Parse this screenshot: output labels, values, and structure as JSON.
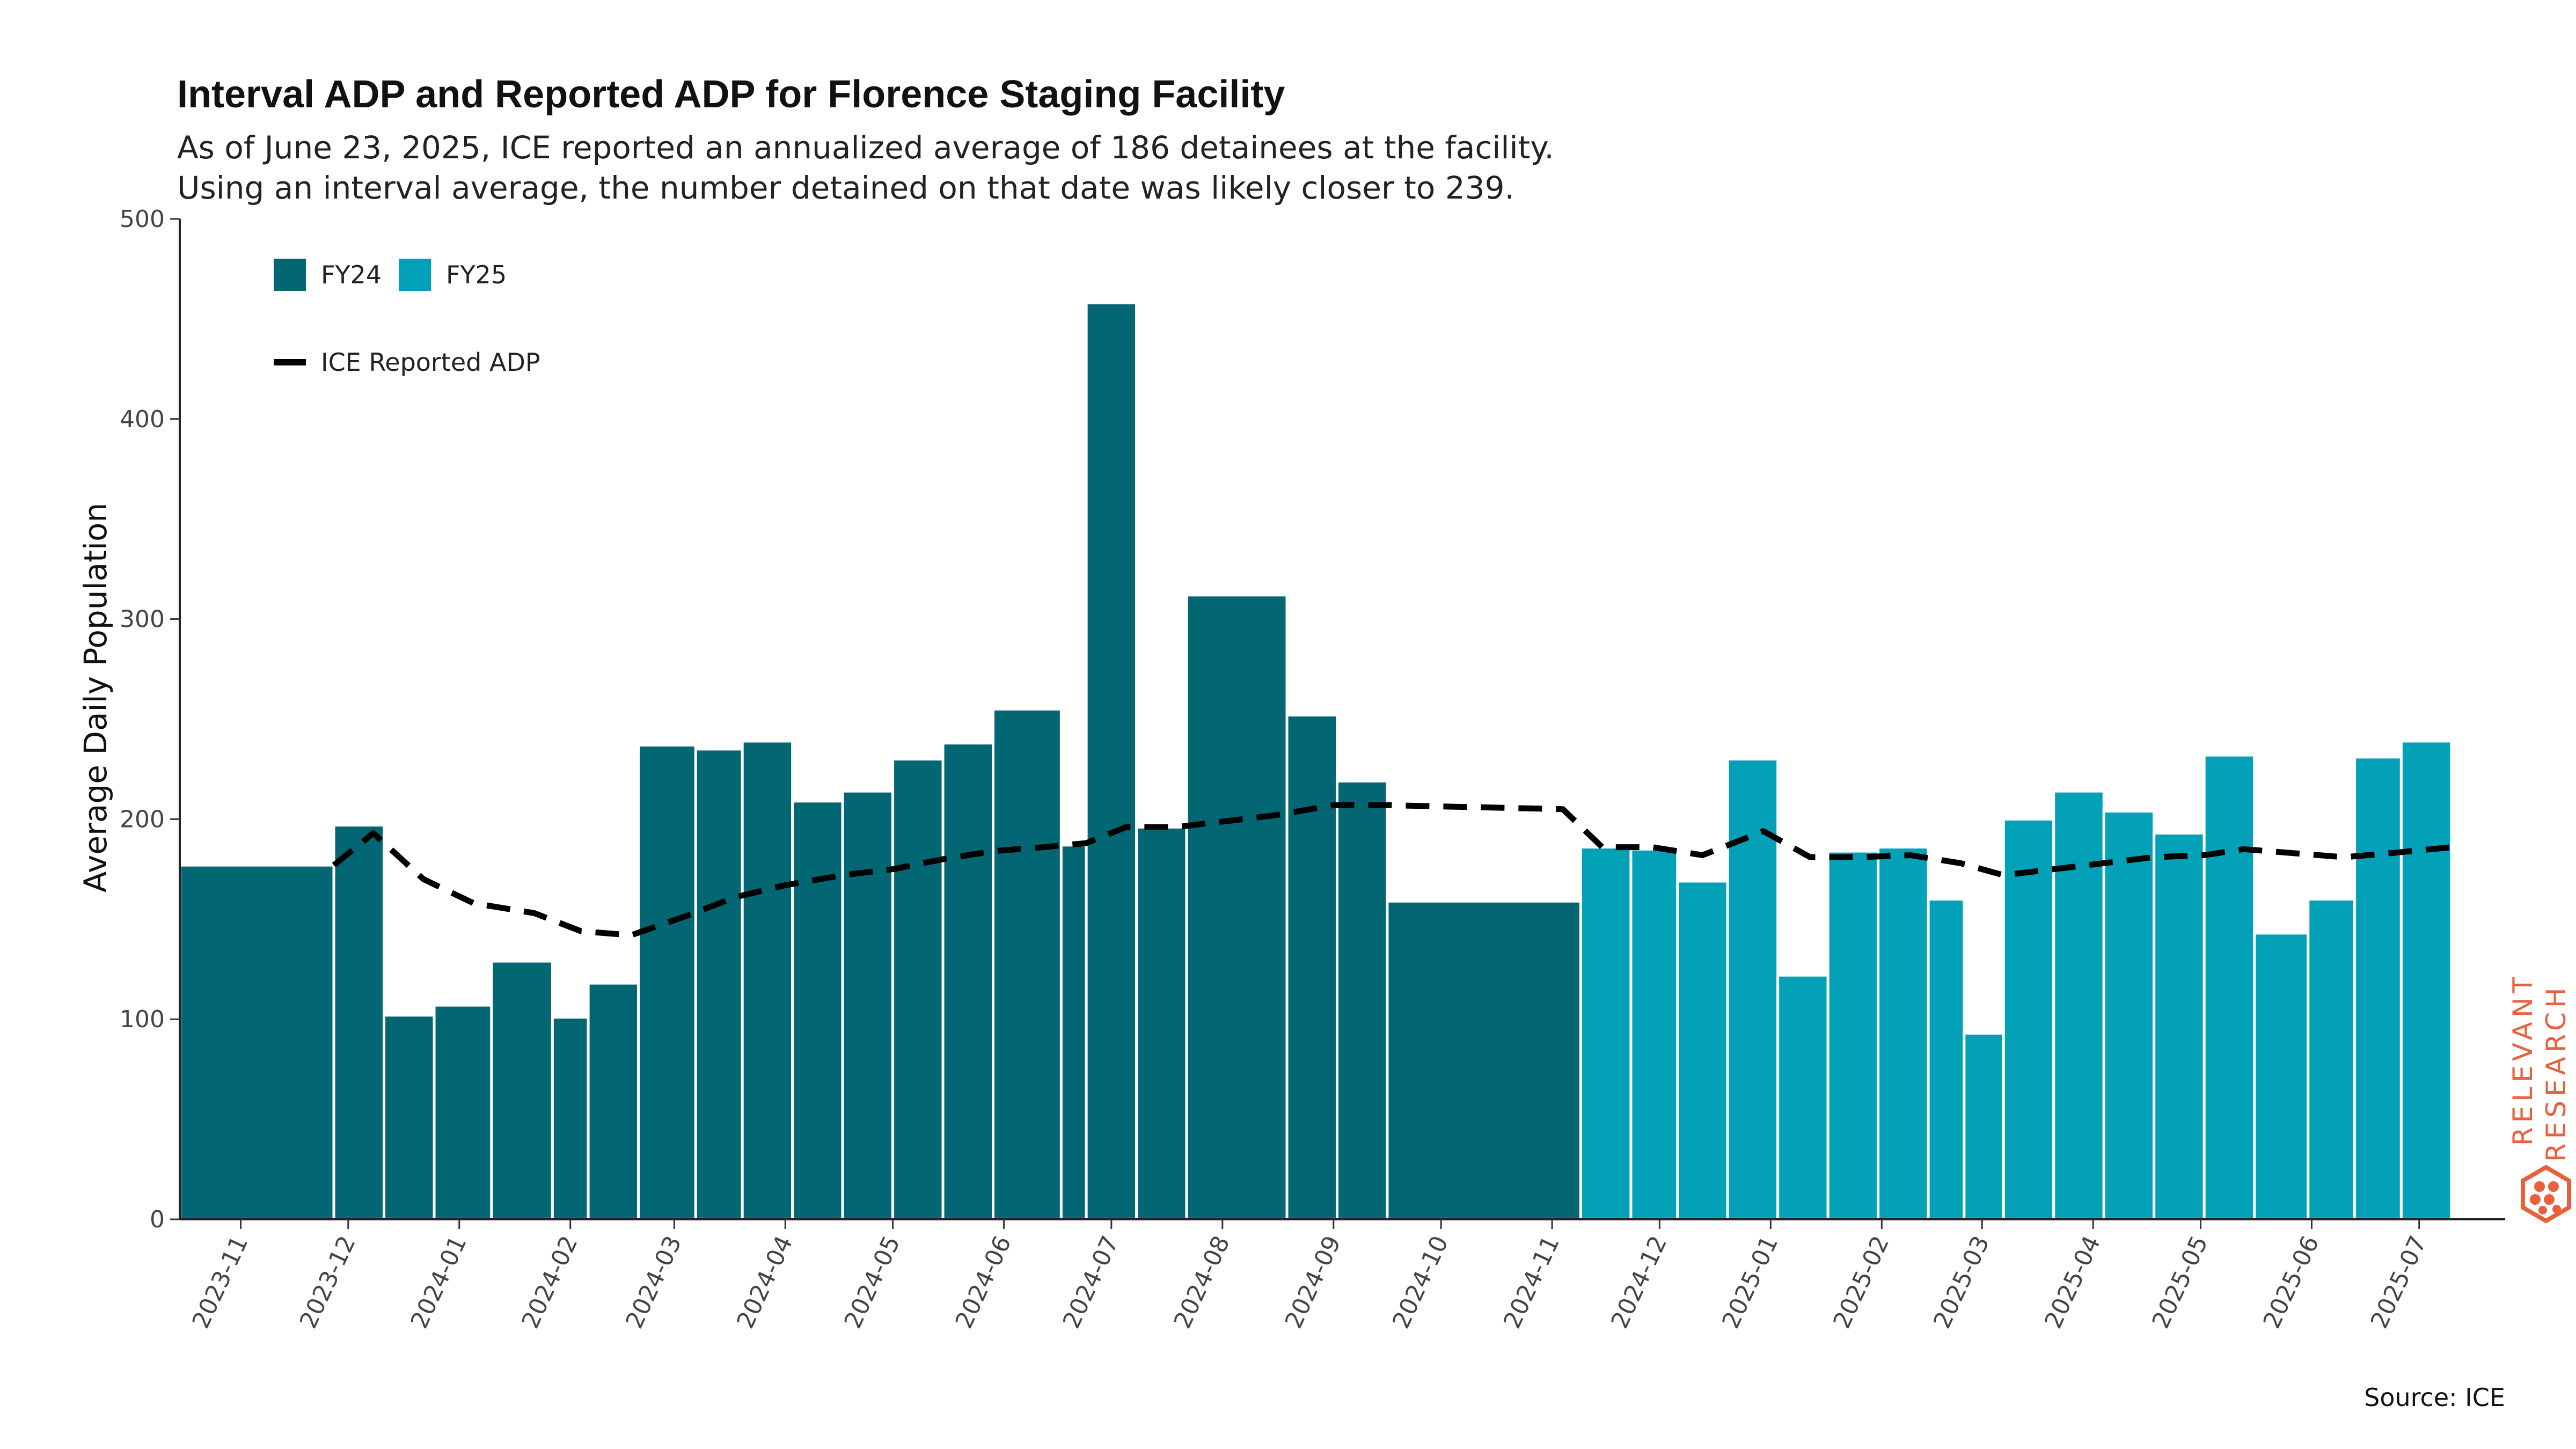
{
  "title": "Interval ADP and Reported ADP for Florence Staging Facility",
  "subtitle_lines": [
    "As of June 23, 2025, ICE reported an annualized average of 186 detainees at the facility.",
    "Using an interval average, the number detained on that date was likely closer to 239."
  ],
  "source": "Source: ICE",
  "logo": {
    "line1": "RELEVANT",
    "line2": "RESEARCH",
    "color": "#e8603c"
  },
  "chart_data": {
    "type": "bar",
    "ylabel": "Average Daily Population",
    "xlabel": "",
    "ylim": [
      0,
      500
    ],
    "yticks": [
      0,
      100,
      200,
      300,
      400,
      500
    ],
    "xlim": [
      "2023-10-15",
      "2025-07-25"
    ],
    "xticks": [
      "2023-11",
      "2023-12",
      "2024-01",
      "2024-02",
      "2024-03",
      "2024-04",
      "2024-05",
      "2024-06",
      "2024-07",
      "2024-08",
      "2024-09",
      "2024-10",
      "2024-11",
      "2024-12",
      "2025-01",
      "2025-02",
      "2025-03",
      "2025-04",
      "2025-05",
      "2025-06",
      "2025-07"
    ],
    "grid": false,
    "legend_position": "top-left",
    "colors": {
      "FY24": "#036673",
      "FY25": "#03a1b7",
      "reported": "#000000"
    },
    "legend": [
      {
        "label": "FY24",
        "kind": "box",
        "color": "#036673"
      },
      {
        "label": "FY25",
        "kind": "box",
        "color": "#03a1b7"
      },
      {
        "label": "ICE Reported ADP",
        "kind": "dash",
        "color": "#000000"
      }
    ],
    "bars": [
      {
        "start": "2023-10-15",
        "end": "2023-11-27",
        "value": 177,
        "fy": "FY24"
      },
      {
        "start": "2023-11-27",
        "end": "2023-12-11",
        "value": 197,
        "fy": "FY24"
      },
      {
        "start": "2023-12-11",
        "end": "2023-12-25",
        "value": 102,
        "fy": "FY24"
      },
      {
        "start": "2023-12-25",
        "end": "2024-01-10",
        "value": 107,
        "fy": "FY24"
      },
      {
        "start": "2024-01-10",
        "end": "2024-01-27",
        "value": 129,
        "fy": "FY24"
      },
      {
        "start": "2024-01-27",
        "end": "2024-02-06",
        "value": 101,
        "fy": "FY24"
      },
      {
        "start": "2024-02-06",
        "end": "2024-02-20",
        "value": 118,
        "fy": "FY24"
      },
      {
        "start": "2024-02-20",
        "end": "2024-03-07",
        "value": 237,
        "fy": "FY24"
      },
      {
        "start": "2024-03-07",
        "end": "2024-03-20",
        "value": 235,
        "fy": "FY24"
      },
      {
        "start": "2024-03-20",
        "end": "2024-04-03",
        "value": 239,
        "fy": "FY24"
      },
      {
        "start": "2024-04-03",
        "end": "2024-04-17",
        "value": 209,
        "fy": "FY24"
      },
      {
        "start": "2024-04-17",
        "end": "2024-05-01",
        "value": 214,
        "fy": "FY24"
      },
      {
        "start": "2024-05-01",
        "end": "2024-05-15",
        "value": 230,
        "fy": "FY24"
      },
      {
        "start": "2024-05-15",
        "end": "2024-05-29",
        "value": 238,
        "fy": "FY24"
      },
      {
        "start": "2024-05-29",
        "end": "2024-06-17",
        "value": 255,
        "fy": "FY24"
      },
      {
        "start": "2024-06-17",
        "end": "2024-06-24",
        "value": 187,
        "fy": "FY24"
      },
      {
        "start": "2024-06-24",
        "end": "2024-07-08",
        "value": 458,
        "fy": "FY24"
      },
      {
        "start": "2024-07-08",
        "end": "2024-07-22",
        "value": 196,
        "fy": "FY24"
      },
      {
        "start": "2024-07-22",
        "end": "2024-08-19",
        "value": 312,
        "fy": "FY24"
      },
      {
        "start": "2024-08-19",
        "end": "2024-09-02",
        "value": 252,
        "fy": "FY24"
      },
      {
        "start": "2024-09-02",
        "end": "2024-09-16",
        "value": 219,
        "fy": "FY24"
      },
      {
        "start": "2024-09-16",
        "end": "2024-11-09",
        "value": 159,
        "fy": "FY24"
      },
      {
        "start": "2024-11-09",
        "end": "2024-11-23",
        "value": 186,
        "fy": "FY25"
      },
      {
        "start": "2024-11-23",
        "end": "2024-12-06",
        "value": 185,
        "fy": "FY25"
      },
      {
        "start": "2024-12-06",
        "end": "2024-12-20",
        "value": 169,
        "fy": "FY25"
      },
      {
        "start": "2024-12-20",
        "end": "2025-01-03",
        "value": 230,
        "fy": "FY25"
      },
      {
        "start": "2025-01-03",
        "end": "2025-01-17",
        "value": 122,
        "fy": "FY25"
      },
      {
        "start": "2025-01-17",
        "end": "2025-01-31",
        "value": 184,
        "fy": "FY25"
      },
      {
        "start": "2025-01-31",
        "end": "2025-02-14",
        "value": 186,
        "fy": "FY25"
      },
      {
        "start": "2025-02-14",
        "end": "2025-02-24",
        "value": 160,
        "fy": "FY25"
      },
      {
        "start": "2025-02-24",
        "end": "2025-03-07",
        "value": 93,
        "fy": "FY25"
      },
      {
        "start": "2025-03-07",
        "end": "2025-03-21",
        "value": 200,
        "fy": "FY25"
      },
      {
        "start": "2025-03-21",
        "end": "2025-04-04",
        "value": 214,
        "fy": "FY25"
      },
      {
        "start": "2025-04-04",
        "end": "2025-04-18",
        "value": 204,
        "fy": "FY25"
      },
      {
        "start": "2025-04-18",
        "end": "2025-05-02",
        "value": 193,
        "fy": "FY25"
      },
      {
        "start": "2025-05-02",
        "end": "2025-05-16",
        "value": 232,
        "fy": "FY25"
      },
      {
        "start": "2025-05-16",
        "end": "2025-05-31",
        "value": 143,
        "fy": "FY25"
      },
      {
        "start": "2025-05-31",
        "end": "2025-06-13",
        "value": 160,
        "fy": "FY25"
      },
      {
        "start": "2025-06-13",
        "end": "2025-06-26",
        "value": 231,
        "fy": "FY25"
      },
      {
        "start": "2025-06-26",
        "end": "2025-07-10",
        "value": 239,
        "fy": "FY25"
      }
    ],
    "series": [
      {
        "name": "ICE Reported ADP",
        "points": [
          [
            "2023-11-27",
            177
          ],
          [
            "2023-12-08",
            193
          ],
          [
            "2023-12-22",
            170
          ],
          [
            "2024-01-05",
            158
          ],
          [
            "2024-01-22",
            153
          ],
          [
            "2024-02-04",
            144
          ],
          [
            "2024-02-18",
            142
          ],
          [
            "2024-03-05",
            152
          ],
          [
            "2024-03-18",
            161
          ],
          [
            "2024-04-01",
            167
          ],
          [
            "2024-04-17",
            172
          ],
          [
            "2024-05-01",
            175
          ],
          [
            "2024-05-15",
            180
          ],
          [
            "2024-05-29",
            184
          ],
          [
            "2024-06-12",
            186
          ],
          [
            "2024-06-24",
            188
          ],
          [
            "2024-07-05",
            196
          ],
          [
            "2024-07-19",
            196
          ],
          [
            "2024-08-02",
            199
          ],
          [
            "2024-08-16",
            202
          ],
          [
            "2024-09-01",
            207
          ],
          [
            "2024-09-16",
            207
          ],
          [
            "2024-11-04",
            205
          ],
          [
            "2024-11-15",
            186
          ],
          [
            "2024-11-29",
            186
          ],
          [
            "2024-12-13",
            182
          ],
          [
            "2024-12-30",
            194
          ],
          [
            "2025-01-12",
            181
          ],
          [
            "2025-01-26",
            181
          ],
          [
            "2025-02-09",
            182
          ],
          [
            "2025-02-23",
            178
          ],
          [
            "2025-03-07",
            172
          ],
          [
            "2025-03-21",
            175
          ],
          [
            "2025-04-04",
            178
          ],
          [
            "2025-04-18",
            181
          ],
          [
            "2025-05-02",
            182
          ],
          [
            "2025-05-13",
            185
          ],
          [
            "2025-05-27",
            183
          ],
          [
            "2025-06-10",
            181
          ],
          [
            "2025-06-23",
            183
          ],
          [
            "2025-07-10",
            186
          ]
        ]
      }
    ]
  }
}
